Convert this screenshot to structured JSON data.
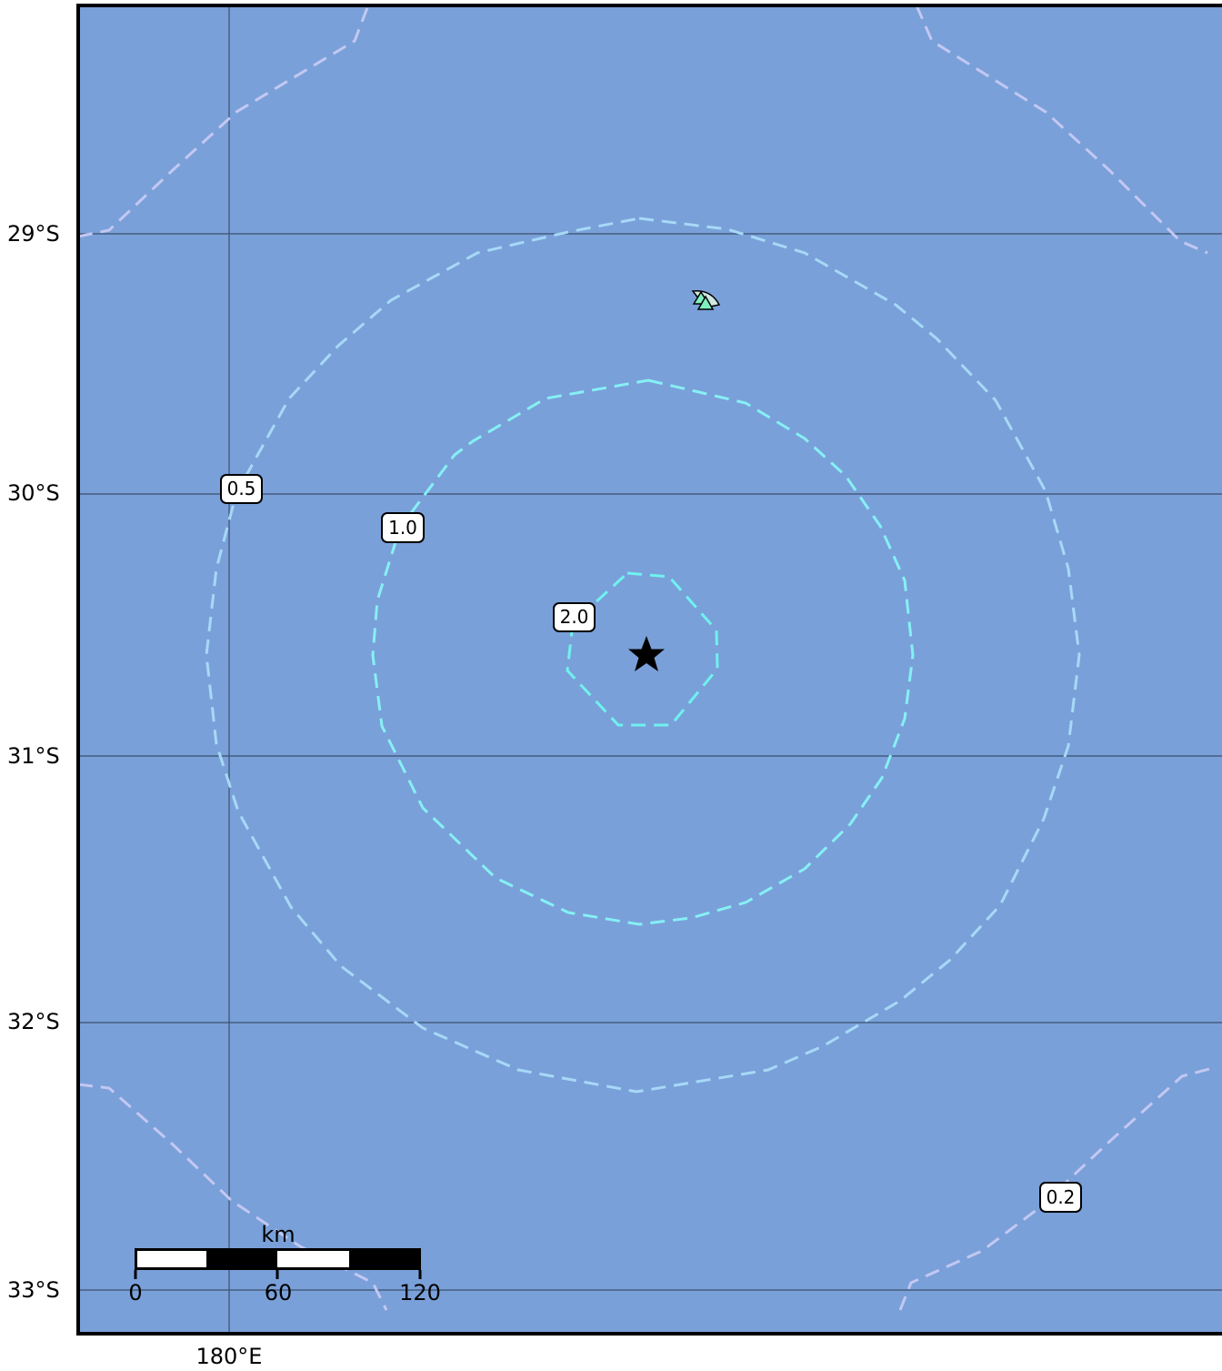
{
  "map": {
    "background_color": "#7aa0d9",
    "grid_color": "#3a4f6e",
    "latitude_labels": [
      "29°S",
      "30°S",
      "31°S",
      "32°S",
      "33°S"
    ],
    "longitude_labels": [
      "180°E"
    ],
    "contours": [
      {
        "value": "0.2",
        "color": "#c3c8f2"
      },
      {
        "value": "0.5",
        "color": "#a6d9f7"
      },
      {
        "value": "1.0",
        "color": "#86f0f4"
      },
      {
        "value": "2.0",
        "color": "#6ff2ee"
      }
    ],
    "epicenter": {
      "symbol": "star-icon"
    },
    "stations": {
      "symbol": "triangle-icon",
      "color": "#7ff0c0"
    },
    "scale_bar": {
      "unit": "km",
      "ticks": [
        "0",
        "60",
        "120"
      ]
    }
  }
}
